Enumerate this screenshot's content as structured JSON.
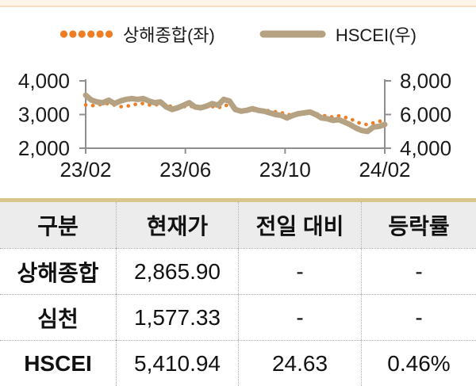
{
  "page": {
    "top_band_color": "#fdf3e7",
    "top_band_edge_color": "#f8ddc0"
  },
  "legend": {
    "items": [
      {
        "label": "상해종합(좌)",
        "style": "dotted",
        "color": "#ef7d23"
      },
      {
        "label": "HSCEI(우)",
        "style": "solid",
        "color": "#b5a283"
      }
    ]
  },
  "chart_data": {
    "type": "line",
    "title": "",
    "x_tick_labels": [
      "23/02",
      "23/06",
      "23/10",
      "24/02"
    ],
    "left_axis": {
      "label": "상해종합",
      "ticks": [
        "4,000",
        "3,000",
        "2,000"
      ],
      "tick_values": [
        4000,
        3000,
        2000
      ],
      "min": 2000,
      "max": 4000
    },
    "right_axis": {
      "label": "HSCEI",
      "ticks": [
        "8,000",
        "6,000",
        "4,000"
      ],
      "tick_values": [
        8000,
        6000,
        4000
      ],
      "min": 4000,
      "max": 8000
    },
    "axis_color": "#8f8f8f",
    "grid": false,
    "legend_position": "top",
    "series": [
      {
        "name": "상해종합(좌)",
        "axis": "left",
        "style": "dotted",
        "color": "#ef7d23",
        "values": [
          3285,
          3260,
          3280,
          3310,
          3330,
          3280,
          3230,
          3250,
          3270,
          3320,
          3330,
          3290,
          3270,
          3340,
          3290,
          3230,
          3210,
          3230,
          3260,
          3210,
          3190,
          3220,
          3240,
          3190,
          3280,
          3260,
          3150,
          3120,
          3100,
          3130,
          3110,
          3120,
          3110,
          3080,
          3060,
          2980,
          3020,
          3040,
          3050,
          3060,
          3030,
          2970,
          2960,
          2920,
          2960,
          2920,
          2880,
          2780,
          2730,
          2700,
          2750,
          2790,
          2865.9
        ]
      },
      {
        "name": "HSCEI(우)",
        "axis": "right",
        "style": "solid",
        "color": "#b5a283",
        "values": [
          7150,
          6850,
          6750,
          6700,
          6850,
          6650,
          6800,
          6900,
          6950,
          6900,
          6950,
          6800,
          6700,
          6750,
          6450,
          6300,
          6400,
          6550,
          6700,
          6450,
          6400,
          6500,
          6650,
          6550,
          6900,
          6800,
          6300,
          6200,
          6250,
          6350,
          6250,
          6200,
          6100,
          6000,
          5950,
          5800,
          5950,
          6050,
          6100,
          6150,
          6000,
          5800,
          5750,
          5650,
          5700,
          5550,
          5400,
          5200,
          5050,
          5000,
          5250,
          5300,
          5410.94
        ]
      }
    ]
  },
  "table": {
    "accent_color": "#d9c48c",
    "header_bg": "#ececec",
    "columns": [
      "구분",
      "현재가",
      "전일 대비",
      "등락률"
    ],
    "rows": [
      {
        "name": "상해종합",
        "price": "2,865.90",
        "change": "-",
        "pct": "-"
      },
      {
        "name": "심천",
        "price": "1,577.33",
        "change": "-",
        "pct": "-"
      },
      {
        "name": "HSCEI",
        "price": "5,410.94",
        "change": "24.63",
        "pct": "0.46%"
      }
    ]
  }
}
